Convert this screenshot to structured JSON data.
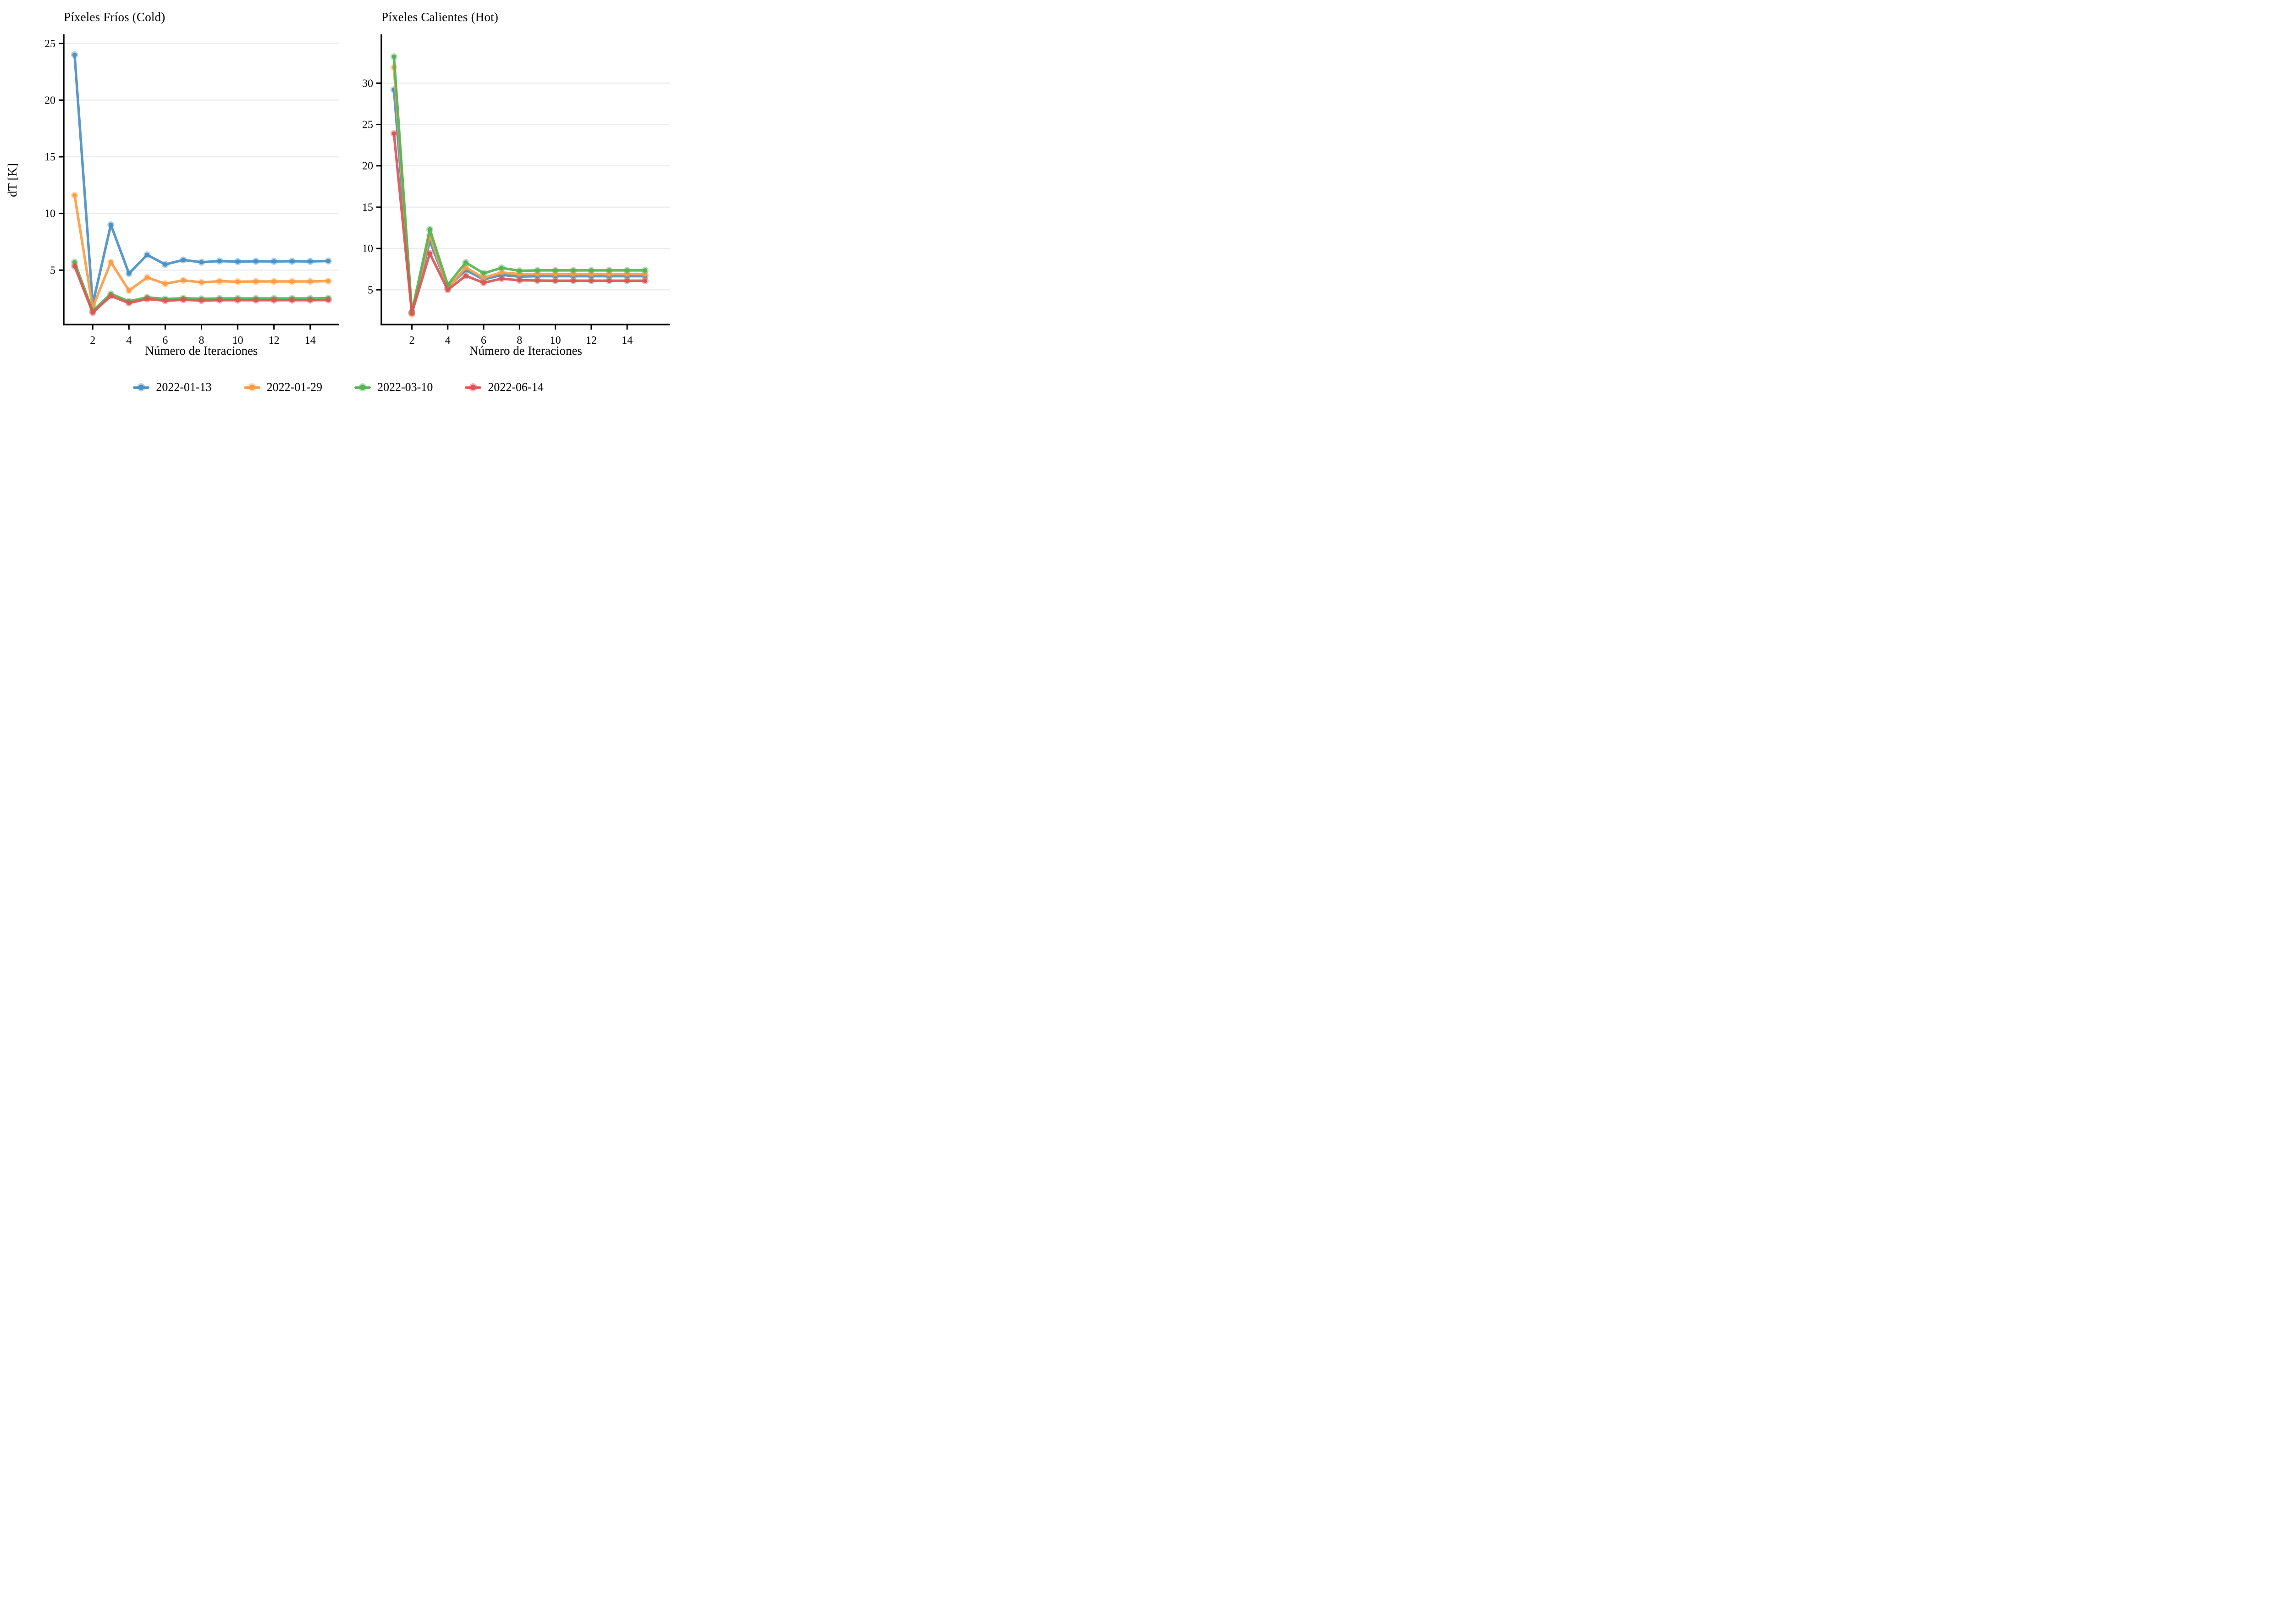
{
  "legend": {
    "entries": [
      {
        "label": "2022-01-13",
        "color": "#4A90C4"
      },
      {
        "label": "2022-01-29",
        "color": "#FD9C43"
      },
      {
        "label": "2022-03-10",
        "color": "#55B455"
      },
      {
        "label": "2022-06-14",
        "color": "#DC5655"
      }
    ],
    "position": "bottom-center, horizontal row"
  },
  "chart_data": [
    {
      "type": "line",
      "title": "Píxeles Fríos (Cold)",
      "xlabel": "Número de Iteraciones",
      "ylabel": "dT [K]",
      "x": [
        1,
        2,
        3,
        4,
        5,
        6,
        7,
        8,
        9,
        10,
        11,
        12,
        13,
        14,
        15
      ],
      "xticks": [
        2,
        4,
        6,
        8,
        10,
        12,
        14
      ],
      "yticks": [
        5,
        10,
        15,
        20,
        25
      ],
      "xlim": [
        0.4,
        15.6
      ],
      "ylim": [
        0.2,
        25.8
      ],
      "grid": "horizontal gridlines at yticks",
      "series": [
        {
          "name": "2022-01-13",
          "color": "#4A90C4",
          "values": [
            24.0,
            2.0,
            9.0,
            4.7,
            6.35,
            5.5,
            5.9,
            5.7,
            5.8,
            5.75,
            5.78,
            5.77,
            5.78,
            5.77,
            5.8
          ]
        },
        {
          "name": "2022-01-29",
          "color": "#FD9C43",
          "values": [
            11.6,
            1.7,
            5.7,
            3.2,
            4.35,
            3.8,
            4.1,
            3.92,
            4.02,
            3.98,
            4.0,
            4.0,
            4.0,
            4.0,
            4.03
          ]
        },
        {
          "name": "2022-03-10",
          "color": "#55B455",
          "values": [
            5.7,
            1.4,
            2.9,
            2.25,
            2.6,
            2.45,
            2.52,
            2.47,
            2.5,
            2.5,
            2.5,
            2.5,
            2.5,
            2.5,
            2.52
          ]
        },
        {
          "name": "2022-06-14",
          "color": "#DC5655",
          "values": [
            5.35,
            1.25,
            2.72,
            2.1,
            2.45,
            2.3,
            2.38,
            2.32,
            2.35,
            2.35,
            2.35,
            2.35,
            2.35,
            2.35,
            2.36
          ]
        }
      ]
    },
    {
      "type": "line",
      "title": "Píxeles Calientes (Hot)",
      "xlabel": "Número de Iteraciones",
      "ylabel": "",
      "x": [
        1,
        2,
        3,
        4,
        5,
        6,
        7,
        8,
        9,
        10,
        11,
        12,
        13,
        14,
        15
      ],
      "xticks": [
        2,
        4,
        6,
        8,
        10,
        12,
        14
      ],
      "yticks": [
        5,
        10,
        15,
        20,
        25,
        30
      ],
      "xlim": [
        0.3,
        16.4
      ],
      "ylim": [
        0.8,
        35.9
      ],
      "grid": "horizontal gridlines at yticks",
      "series": [
        {
          "name": "2022-01-13",
          "color": "#4A90C4",
          "values": [
            29.2,
            2.25,
            10.9,
            5.3,
            7.4,
            6.25,
            6.8,
            6.6,
            6.65,
            6.65,
            6.65,
            6.65,
            6.65,
            6.65,
            6.65
          ]
        },
        {
          "name": "2022-01-29",
          "color": "#FD9C43",
          "values": [
            31.9,
            2.05,
            11.6,
            5.2,
            7.7,
            6.45,
            7.1,
            6.9,
            6.92,
            6.9,
            6.9,
            6.9,
            6.9,
            6.9,
            6.9
          ]
        },
        {
          "name": "2022-03-10",
          "color": "#55B455",
          "values": [
            33.2,
            2.3,
            12.3,
            5.6,
            8.3,
            7.0,
            7.65,
            7.3,
            7.35,
            7.35,
            7.35,
            7.35,
            7.35,
            7.35,
            7.35
          ]
        },
        {
          "name": "2022-06-14",
          "color": "#DC5655",
          "values": [
            23.9,
            2.2,
            9.4,
            5.0,
            6.7,
            5.85,
            6.35,
            6.15,
            6.12,
            6.1,
            6.1,
            6.1,
            6.1,
            6.1,
            6.1
          ]
        }
      ]
    }
  ]
}
